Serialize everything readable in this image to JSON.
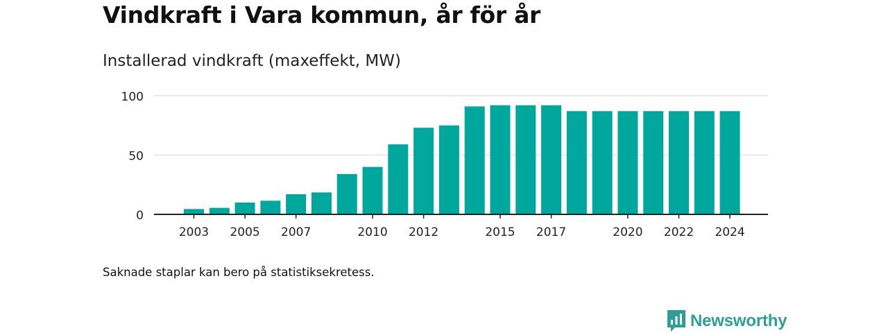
{
  "header": {
    "title": "Vindkraft i Vara kommun, år för år",
    "subtitle": "Installerad vindkraft (maxeffekt, MW)"
  },
  "footer": {
    "note": "Saknade staplar kan bero på statistiksekretess.",
    "brand_name": "Newsworthy"
  },
  "colors": {
    "bar": "#00a79d",
    "grid": "#dddddd",
    "axis": "#222222",
    "brand": "#2e9f97"
  },
  "chart_data": {
    "type": "bar",
    "title": "Installerad vindkraft (maxeffekt, MW)",
    "xlabel": "",
    "ylabel": "",
    "categories": [
      "2003",
      "2004",
      "2005",
      "2006",
      "2007",
      "2008",
      "2009",
      "2010",
      "2011",
      "2012",
      "2013",
      "2014",
      "2015",
      "2016",
      "2017",
      "2018",
      "2019",
      "2020",
      "2021",
      "2022",
      "2023",
      "2024"
    ],
    "values": [
      4.5,
      5.5,
      10,
      11.5,
      17,
      18.5,
      34,
      40,
      59,
      73,
      75,
      91,
      92,
      92,
      92,
      87,
      87,
      87,
      87,
      87,
      87,
      87
    ],
    "x_tick_labels": [
      "2003",
      "2005",
      "2007",
      "2010",
      "2012",
      "2015",
      "2017",
      "2020",
      "2022",
      "2024"
    ],
    "y_ticks": [
      0,
      50,
      100
    ],
    "ylim": [
      0,
      100
    ],
    "grid": true,
    "legend": "none"
  }
}
